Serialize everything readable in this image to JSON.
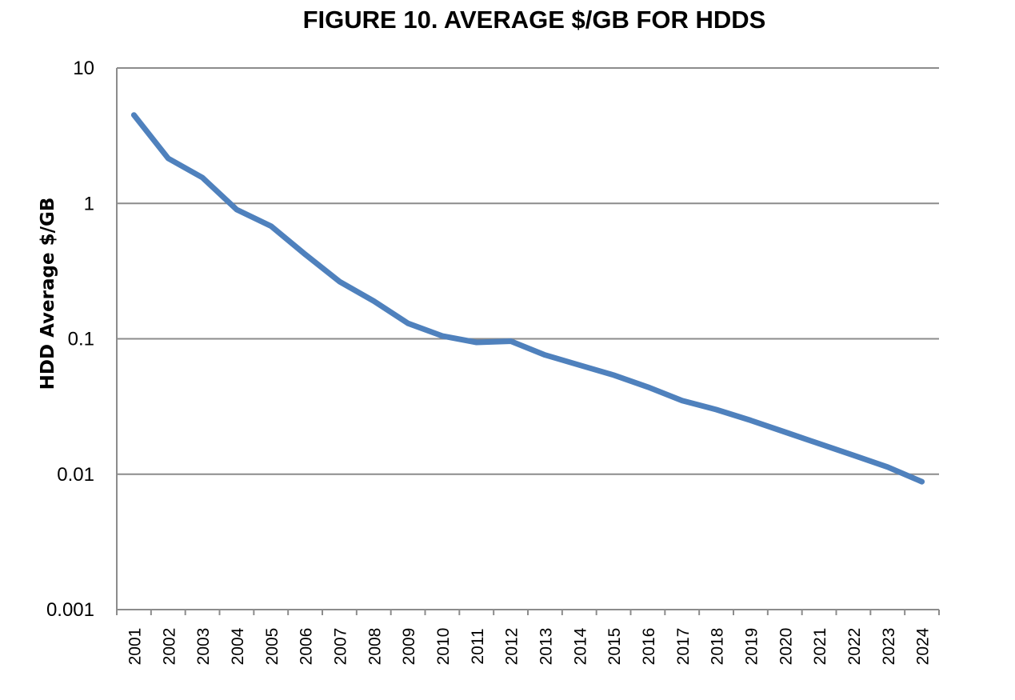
{
  "chart_data": {
    "type": "line",
    "title": "FIGURE 10.  AVERAGE $/GB FOR HDDS",
    "xlabel": "",
    "ylabel": "HDD Average $/GB",
    "yscale": "log",
    "ylim": [
      0.001,
      10
    ],
    "y_ticks": [
      "10",
      "1",
      "0.1",
      "0.01",
      "0.001"
    ],
    "grid": true,
    "legend": "none",
    "categories": [
      "2001",
      "2002",
      "2003",
      "2004",
      "2005",
      "2006",
      "2007",
      "2008",
      "2009",
      "2010",
      "2011",
      "2012",
      "2013",
      "2014",
      "2015",
      "2016",
      "2017",
      "2018",
      "2019",
      "2020",
      "2021",
      "2022",
      "2023",
      "2024"
    ],
    "series": [
      {
        "color": "#4f81bd",
        "values": [
          4.5,
          2.15,
          1.55,
          0.9,
          0.68,
          0.42,
          0.265,
          0.19,
          0.13,
          0.105,
          0.094,
          0.096,
          0.076,
          0.064,
          0.054,
          0.044,
          0.035,
          0.03,
          0.025,
          0.0205,
          0.0168,
          0.0138,
          0.0113,
          0.0088
        ]
      }
    ]
  }
}
